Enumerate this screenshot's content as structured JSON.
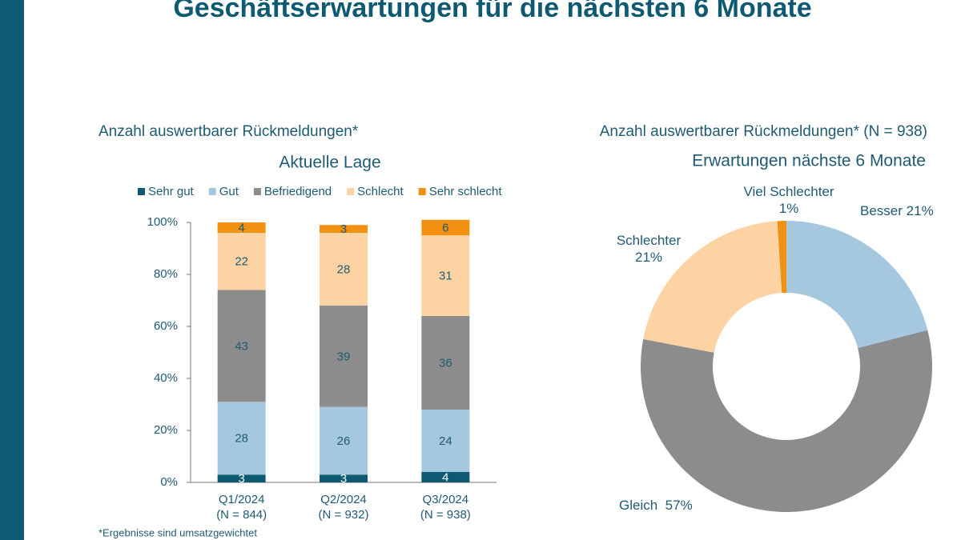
{
  "title": "Geschäftserwartungen für die nächsten 6 Monate",
  "footnote": "*Ergebnisse sind umsatzgewichtet",
  "chart_data": [
    {
      "type": "stacked-bar",
      "subtitle": "Anzahl auswertbarer Rückmeldungen*",
      "title": "Aktuelle Lage",
      "categories": [
        "Q1/2024",
        "Q2/2024",
        "Q3/2024"
      ],
      "sublabels": [
        "(N = 844)",
        "(N = 932)",
        "(N = 938)"
      ],
      "series": [
        {
          "name": "Sehr gut",
          "color": "#0e5a73",
          "label_color": "#ffffff",
          "values": [
            3,
            3,
            4
          ]
        },
        {
          "name": "Gut",
          "color": "#a6c8de",
          "label_color": "#1f5a73",
          "values": [
            28,
            26,
            24
          ]
        },
        {
          "name": "Befriedigend",
          "color": "#8c8c8c",
          "label_color": "#1f5a73",
          "values": [
            43,
            39,
            36
          ]
        },
        {
          "name": "Schlecht",
          "color": "#fdd3a3",
          "label_color": "#1f5a73",
          "values": [
            22,
            28,
            31
          ]
        },
        {
          "name": "Sehr schlecht",
          "color": "#f29111",
          "label_color": "#1f5a73",
          "values": [
            4,
            3,
            6
          ]
        }
      ],
      "ylim": [
        0,
        100
      ],
      "yticks": [
        {
          "value": 0,
          "label": "0%"
        },
        {
          "value": 20,
          "label": "20%"
        },
        {
          "value": 40,
          "label": "40%"
        },
        {
          "value": 60,
          "label": "60%"
        },
        {
          "value": 80,
          "label": "80%"
        },
        {
          "value": 100,
          "label": "100%"
        }
      ],
      "legend": "top"
    },
    {
      "type": "donut",
      "subtitle": "Anzahl auswertbarer Rückmeldungen* (N = 938)",
      "title": "Erwartungen nächste 6 Monate",
      "categories": [
        "Besser",
        "Gleich",
        "Schlechter",
        "Viel Schlechter"
      ],
      "values": [
        21,
        57,
        21,
        1
      ],
      "value_labels": [
        "21%",
        "57%",
        "21%",
        "1%"
      ],
      "colors": [
        "#a6c8de",
        "#8c8c8c",
        "#fdd3a3",
        "#f29111"
      ]
    }
  ]
}
